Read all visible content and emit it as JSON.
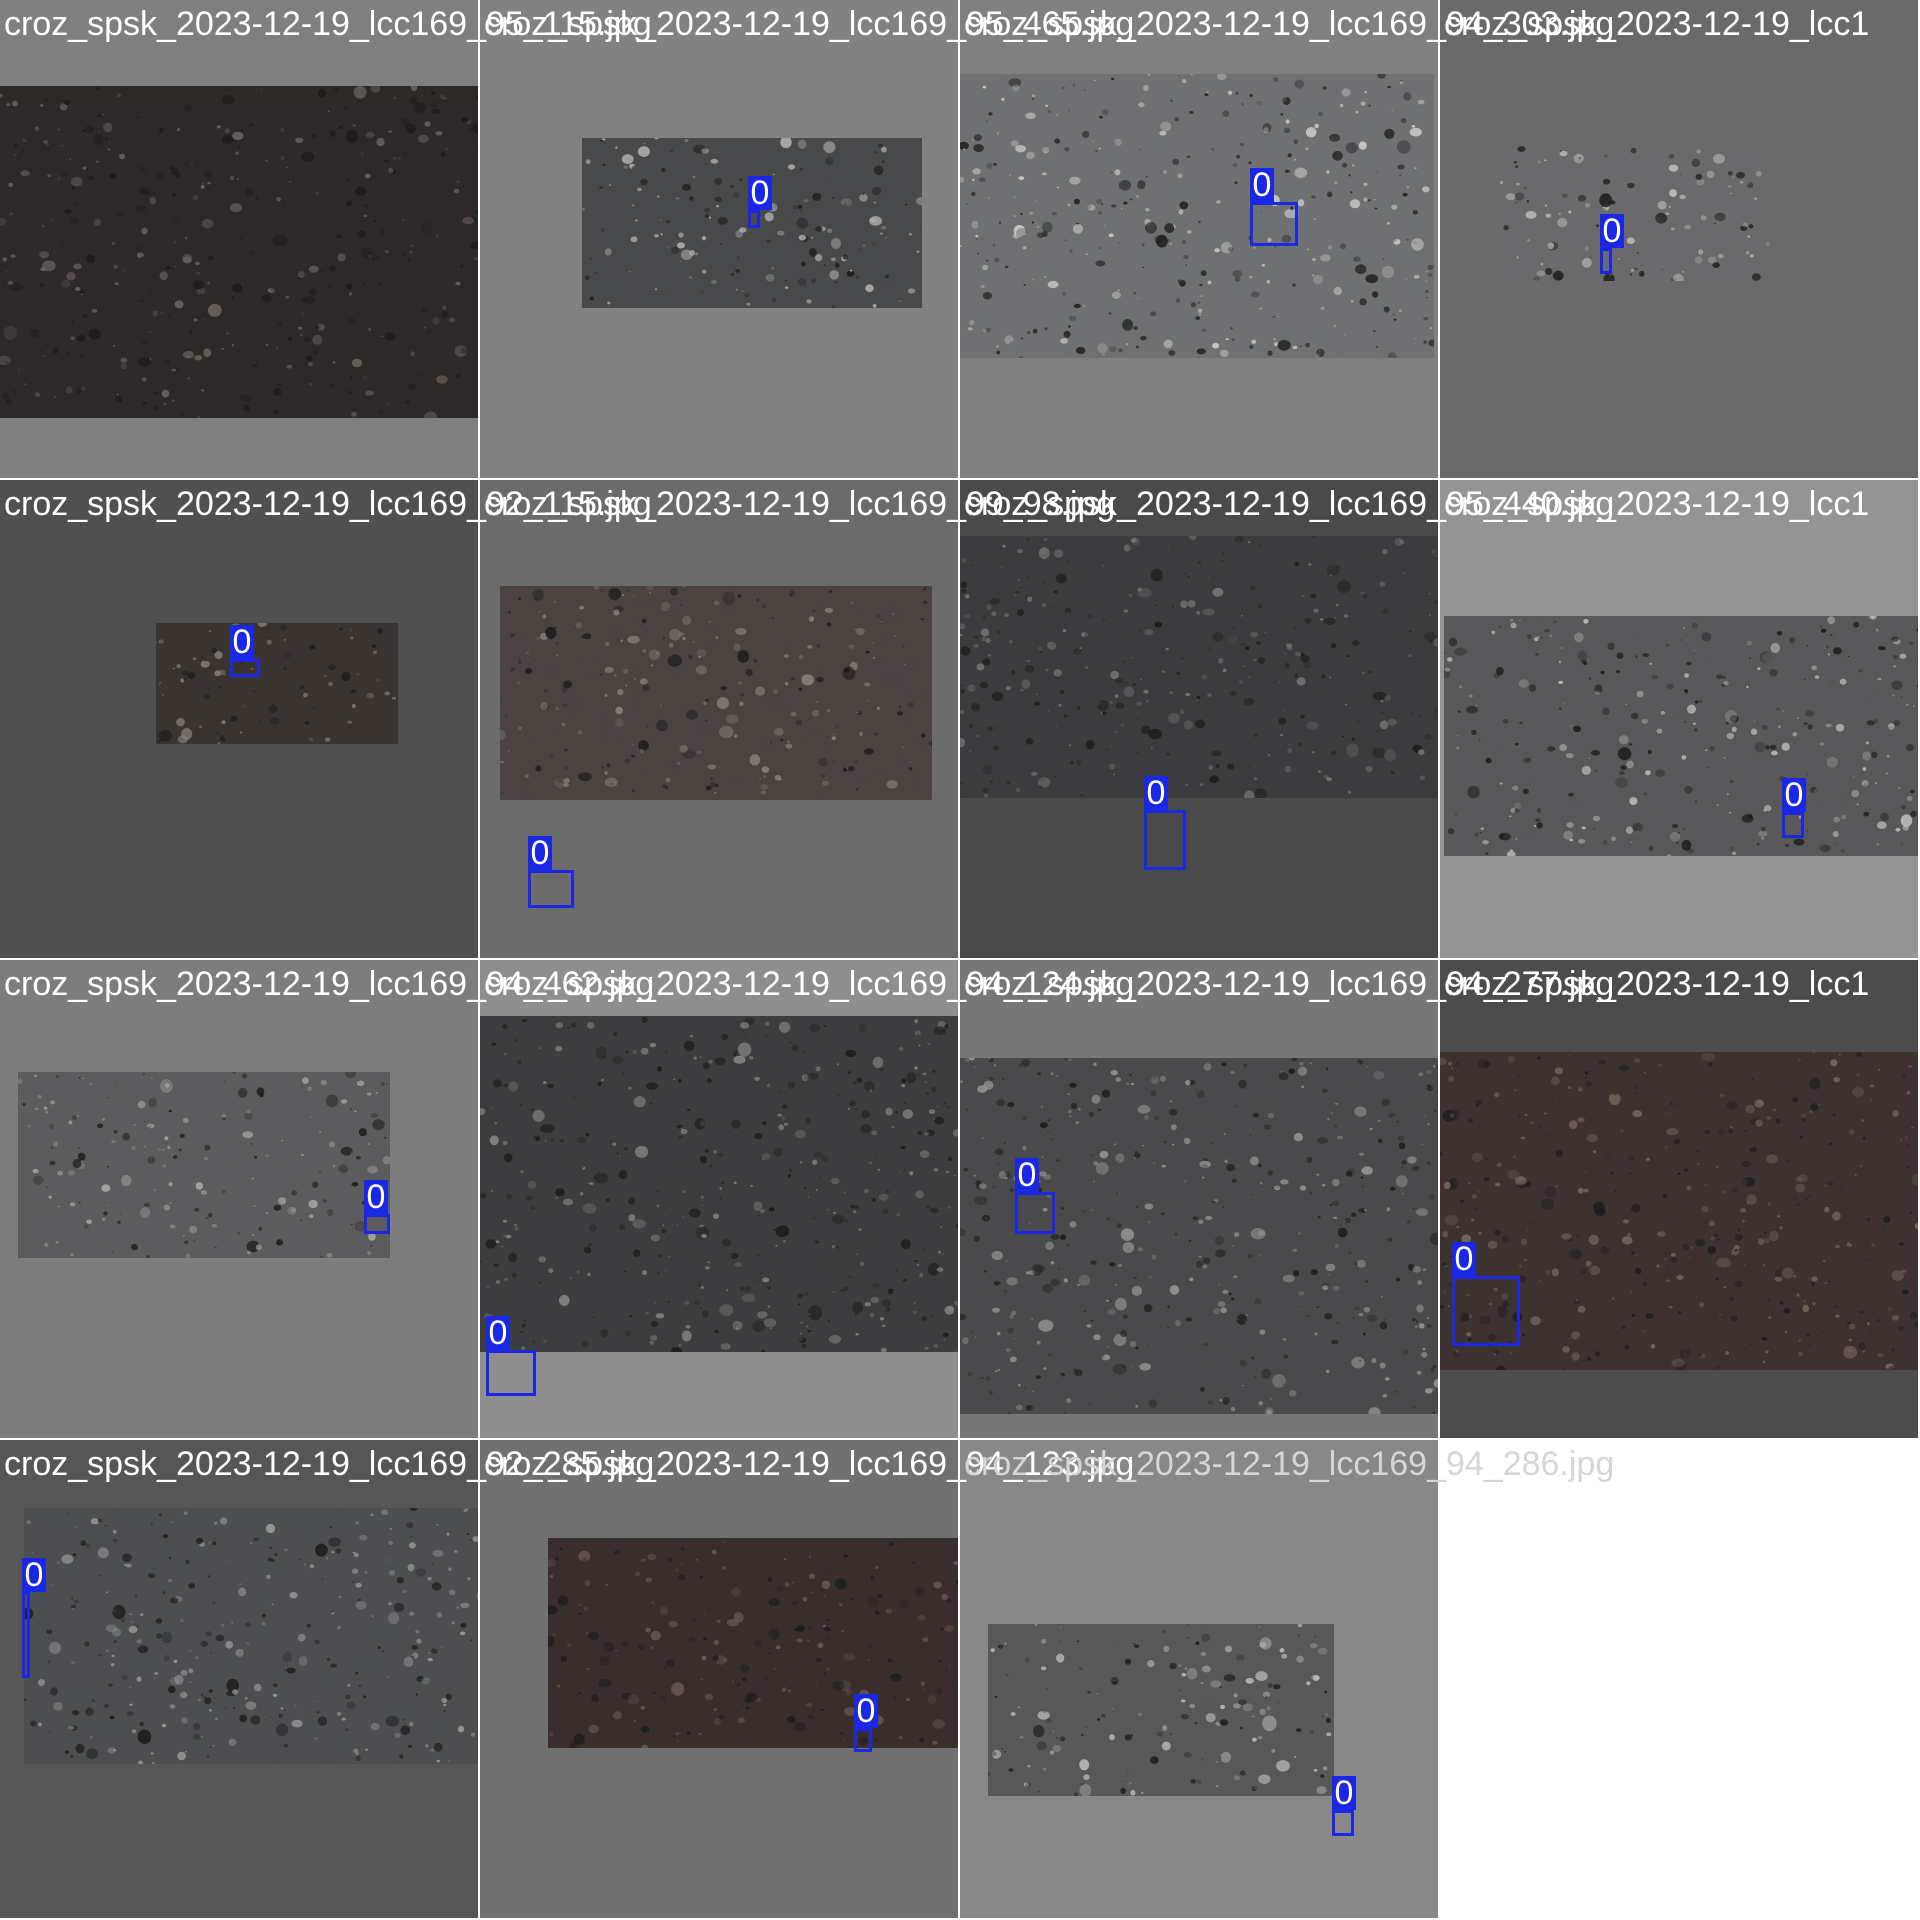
{
  "colors": {
    "box": "#1a28e6",
    "label_text": "#ffffff",
    "caption": "#ffffff",
    "faded_caption": "#d6d6d6"
  },
  "tiles": [
    {
      "bg": "#7f7f7f",
      "photo": {
        "tone": "#2d2926",
        "light": "#6e6660"
      },
      "detections": []
    },
    {
      "bg": "#828282",
      "photo": {
        "tone": "#48494b",
        "light": "#b8b8b6"
      },
      "detections": [
        {
          "class": "0"
        }
      ]
    },
    {
      "bg": "#808080",
      "photo": {
        "tone": "#6e7072",
        "light": "#d4d4d2"
      },
      "detections": [
        {
          "class": "0"
        }
      ]
    },
    {
      "bg": "#6a6a6a",
      "photo": {
        "tone": "#6a6a6c",
        "light": "#c8c8c6"
      },
      "detections": [
        {
          "class": "0"
        }
      ]
    },
    {
      "bg": "#505050",
      "photo": {
        "tone": "#3a3430",
        "light": "#8a8480"
      },
      "detections": [
        {
          "class": "0"
        }
      ]
    },
    {
      "bg": "#6b6b6b",
      "photo": {
        "tone": "#4a4340",
        "light": "#8c847c"
      },
      "detections": [
        {
          "class": "0"
        }
      ]
    },
    {
      "bg": "#4a4a4a",
      "photo": {
        "tone": "#3c3c3e",
        "light": "#7a7a7c"
      },
      "detections": [
        {
          "class": "0"
        }
      ]
    },
    {
      "bg": "#949494",
      "photo": {
        "tone": "#58585a",
        "light": "#c2c2c0"
      },
      "detections": [
        {
          "class": "0"
        }
      ]
    },
    {
      "bg": "#7d7d7d",
      "photo": {
        "tone": "#5c5c5e",
        "light": "#b0b0b0"
      },
      "detections": [
        {
          "class": "0"
        }
      ]
    },
    {
      "bg": "#8e8e8e",
      "photo": {
        "tone": "#3d3d3f",
        "light": "#8c8c8c"
      },
      "detections": [
        {
          "class": "0"
        }
      ]
    },
    {
      "bg": "#777777",
      "photo": {
        "tone": "#4a4a4c",
        "light": "#9a9a9a"
      },
      "detections": [
        {
          "class": "0"
        }
      ]
    },
    {
      "bg": "#4c4c4c",
      "photo": {
        "tone": "#3e3230",
        "light": "#7a6a62"
      },
      "detections": [
        {
          "class": "0"
        }
      ]
    },
    {
      "bg": "#565656",
      "photo": {
        "tone": "#4c4e50",
        "light": "#a0a2a2"
      },
      "detections": [
        {
          "class": "0"
        }
      ]
    },
    {
      "bg": "#707070",
      "photo": {
        "tone": "#3a2e2c",
        "light": "#6e5e5a"
      },
      "detections": [
        {
          "class": "0"
        }
      ]
    },
    {
      "bg": "#888888",
      "photo": {
        "tone": "#585858",
        "light": "#c0c0be"
      },
      "detections": [
        {
          "class": "0"
        }
      ]
    }
  ],
  "captions": [
    {
      "text": "croz_spsk_2023-12-19_lcc169_95_115.jpg"
    },
    {
      "text": "croz_spsk_2023-12-19_lcc169_95_465.jpg"
    },
    {
      "text": "croz_spsk_2023-12-19_lcc169_94_303.jpg"
    },
    {
      "text": "croz_spsk_2023-12-19_lcc1"
    },
    {
      "text": "croz_spsk_2023-12-19_lcc169_92_115.jpg"
    },
    {
      "text": "croz_spsk_2023-12-19_lcc169_99_98.jpg"
    },
    {
      "text": "croz_spsk_2023-12-19_lcc169_95_440.jpg"
    },
    {
      "text": "croz_spsk_2023-12-19_lcc1"
    },
    {
      "text": "croz_spsk_2023-12-19_lcc169_94_462.jpg"
    },
    {
      "text": "croz_spsk_2023-12-19_lcc169_94_124.jpg"
    },
    {
      "text": "croz_spsk_2023-12-19_lcc169_94_277.jpg"
    },
    {
      "text": "croz_spsk_2023-12-19_lcc1"
    },
    {
      "text": "croz_spsk_2023-12-19_lcc169_92_285.jpg"
    },
    {
      "text": "croz_spsk_2023-12-19_lcc169_94_123.jpg"
    },
    {
      "text": "croz_spsk_2023-12-19_lcc169_94_286.jpg"
    }
  ]
}
